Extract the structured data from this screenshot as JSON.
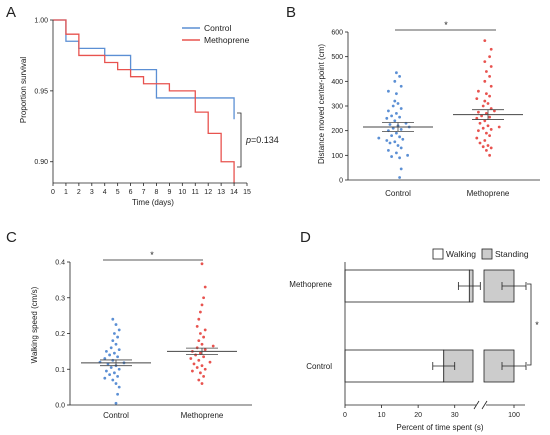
{
  "panel_labels": [
    "A",
    "B",
    "C",
    "D"
  ],
  "colors": {
    "control": "#5b8fd4",
    "methoprene": "#e8534f",
    "standing": "#cccccc",
    "walking": "#ffffff"
  },
  "chart_data": [
    {
      "id": "A",
      "type": "line",
      "step": true,
      "xlabel": "Time (days)",
      "ylabel": "Proportion survival",
      "xlim": [
        0,
        15
      ],
      "ylim": [
        0.885,
        1.0
      ],
      "xticks": [
        "0",
        "1",
        "2",
        "3",
        "4",
        "5",
        "6",
        "7",
        "8",
        "9",
        "10",
        "11",
        "12",
        "13",
        "14",
        "15"
      ],
      "yticks": [
        "0.90",
        "0.95",
        "1.00"
      ],
      "legend": "top-right",
      "annotation": {
        "p_label": "p",
        "p_value": "=0.134"
      },
      "series": [
        {
          "name": "Control",
          "color": "#5b8fd4",
          "x": [
            0,
            1,
            2,
            4,
            6,
            8,
            11,
            14
          ],
          "y": [
            1.0,
            0.985,
            0.98,
            0.975,
            0.965,
            0.945,
            0.945,
            0.93
          ]
        },
        {
          "name": "Methoprene",
          "color": "#e8534f",
          "x": [
            0,
            1,
            2,
            4,
            5,
            6,
            7,
            9,
            11,
            12,
            13,
            14
          ],
          "y": [
            1.0,
            0.99,
            0.975,
            0.97,
            0.965,
            0.96,
            0.955,
            0.95,
            0.935,
            0.92,
            0.9,
            0.885
          ]
        }
      ]
    },
    {
      "id": "B",
      "type": "scatter",
      "ylabel": "Distance moved center-point (cm)",
      "categories": [
        "Control",
        "Methoprene"
      ],
      "ylim": [
        0,
        600
      ],
      "yticks": [
        "0",
        "100",
        "200",
        "300",
        "400",
        "500",
        "600"
      ],
      "significance": "*",
      "series": [
        {
          "name": "Control",
          "color": "#5b8fd4",
          "mean": 215,
          "sem": 18,
          "values": [
            10,
            45,
            90,
            95,
            100,
            110,
            120,
            130,
            140,
            150,
            155,
            160,
            165,
            170,
            175,
            180,
            190,
            200,
            205,
            210,
            215,
            220,
            225,
            230,
            240,
            250,
            255,
            260,
            270,
            280,
            290,
            300,
            310,
            320,
            350,
            360,
            380,
            400,
            420,
            435
          ]
        },
        {
          "name": "Methoprene",
          "color": "#e8534f",
          "mean": 265,
          "sem": 20,
          "values": [
            100,
            120,
            130,
            135,
            140,
            150,
            160,
            170,
            180,
            190,
            200,
            205,
            210,
            215,
            220,
            230,
            240,
            250,
            255,
            260,
            270,
            275,
            280,
            290,
            300,
            310,
            320,
            330,
            340,
            350,
            360,
            380,
            400,
            420,
            440,
            460,
            480,
            500,
            530,
            565
          ]
        }
      ]
    },
    {
      "id": "C",
      "type": "scatter",
      "ylabel": "Walking speed (cm/s)",
      "categories": [
        "Control",
        "Methoprene"
      ],
      "ylim": [
        0,
        0.4
      ],
      "yticks": [
        "0.0",
        "0.1",
        "0.2",
        "0.3",
        "0.4"
      ],
      "significance": "*",
      "series": [
        {
          "name": "Control",
          "color": "#5b8fd4",
          "mean": 0.118,
          "sem": 0.008,
          "values": [
            0.005,
            0.03,
            0.05,
            0.06,
            0.07,
            0.075,
            0.08,
            0.085,
            0.09,
            0.095,
            0.1,
            0.105,
            0.11,
            0.115,
            0.118,
            0.12,
            0.125,
            0.13,
            0.135,
            0.14,
            0.145,
            0.15,
            0.155,
            0.16,
            0.17,
            0.18,
            0.19,
            0.2,
            0.21,
            0.225,
            0.24
          ]
        },
        {
          "name": "Methoprene",
          "color": "#e8534f",
          "mean": 0.15,
          "sem": 0.009,
          "values": [
            0.06,
            0.07,
            0.08,
            0.09,
            0.095,
            0.1,
            0.105,
            0.11,
            0.115,
            0.12,
            0.125,
            0.13,
            0.135,
            0.14,
            0.145,
            0.15,
            0.155,
            0.16,
            0.165,
            0.17,
            0.18,
            0.19,
            0.2,
            0.21,
            0.22,
            0.24,
            0.26,
            0.28,
            0.3,
            0.33,
            0.395
          ]
        }
      ]
    },
    {
      "id": "D",
      "type": "bar",
      "orientation": "horizontal",
      "stacked": true,
      "xlabel": "Percent of time spent (s)",
      "categories": [
        "Methoprene",
        "Control"
      ],
      "xticks": [
        "0",
        "10",
        "20",
        "30",
        "100"
      ],
      "axis_break": true,
      "legend": "top",
      "significance": "*",
      "series": [
        {
          "name": "Walking",
          "color": "#ffffff",
          "values": [
            34,
            27
          ],
          "errors": [
            3,
            3
          ]
        },
        {
          "name": "Standing",
          "color": "#cccccc",
          "values": [
            66,
            73
          ]
        }
      ],
      "totals": [
        100,
        100
      ],
      "total_errors": [
        4,
        4
      ]
    }
  ]
}
